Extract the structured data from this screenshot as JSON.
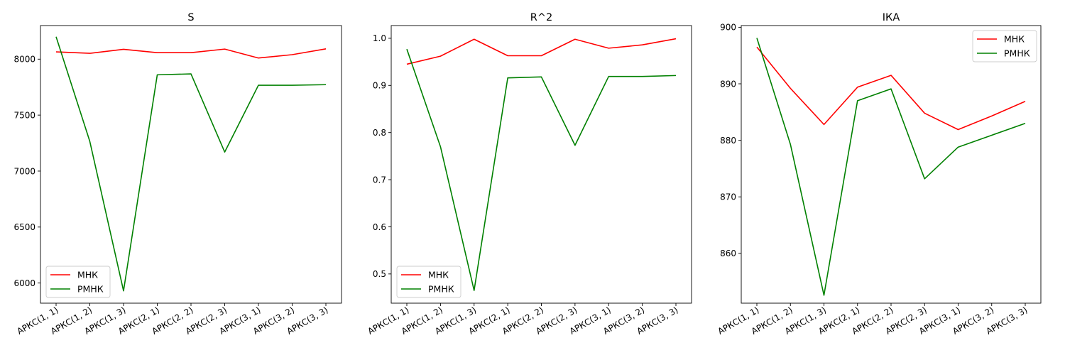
{
  "chart_data": [
    {
      "type": "line",
      "title": "S",
      "xlabel": "",
      "ylabel": "",
      "categories": [
        "АРКС(1, 1)",
        "АРКС(1, 2)",
        "АРКС(1, 3)",
        "АРКС(2, 1)",
        "АРКС(2, 2)",
        "АРКС(2, 3)",
        "АРКС(3, 1)",
        "АРКС(3, 2)",
        "АРКС(3, 3)"
      ],
      "yticks": [
        6000,
        6500,
        7000,
        7500,
        8000
      ],
      "ylim": [
        5820,
        8300
      ],
      "legend": "lower-left",
      "series": [
        {
          "name": "МНК",
          "color": "#ff0000",
          "values": [
            8065,
            8052,
            8088,
            8058,
            8058,
            8090,
            8010,
            8040,
            8092
          ]
        },
        {
          "name": "РМНК",
          "color": "#008000",
          "values": [
            8200,
            7265,
            5930,
            7860,
            7868,
            7170,
            7767,
            7767,
            7772
          ]
        }
      ]
    },
    {
      "type": "line",
      "title": "R^2",
      "xlabel": "",
      "ylabel": "",
      "categories": [
        "АРКС(1, 1)",
        "АРКС(1, 2)",
        "АРКС(1, 3)",
        "АРКС(2, 1)",
        "АРКС(2, 2)",
        "АРКС(2, 3)",
        "АРКС(3, 1)",
        "АРКС(3, 2)",
        "АРКС(3, 3)"
      ],
      "yticks": [
        0.5,
        0.6,
        0.7,
        0.8,
        0.9,
        1.0
      ],
      "yticklabels": [
        "0.5",
        "0.6",
        "0.7",
        "0.8",
        "0.9",
        "1.0"
      ],
      "ylim": [
        0.438,
        1.027
      ],
      "legend": "lower-left",
      "series": [
        {
          "name": "МНК",
          "color": "#ff0000",
          "values": [
            0.945,
            0.962,
            0.998,
            0.963,
            0.963,
            0.998,
            0.979,
            0.986,
            0.999
          ]
        },
        {
          "name": "РМНК",
          "color": "#008000",
          "values": [
            0.977,
            0.77,
            0.465,
            0.916,
            0.918,
            0.773,
            0.919,
            0.919,
            0.921
          ]
        }
      ]
    },
    {
      "type": "line",
      "title": "ІКА",
      "xlabel": "",
      "ylabel": "",
      "categories": [
        "АРКС(1, 1)",
        "АРКС(1, 2)",
        "АРКС(1, 3)",
        "АРКС(2, 1)",
        "АРКС(2, 2)",
        "АРКС(2, 3)",
        "АРКС(3, 1)",
        "АРКС(3, 2)",
        "АРКС(3, 3)"
      ],
      "yticks": [
        860,
        870,
        880,
        890,
        900
      ],
      "ylim": [
        851.2,
        900.3
      ],
      "legend": "upper-right",
      "series": [
        {
          "name": "МНК",
          "color": "#ff0000",
          "values": [
            896.5,
            889.2,
            882.8,
            889.4,
            891.5,
            884.8,
            881.9,
            884.3,
            886.9
          ]
        },
        {
          "name": "РМНК",
          "color": "#008000",
          "values": [
            898.1,
            879.3,
            852.6,
            887.0,
            889.1,
            873.2,
            878.8,
            880.9,
            883.0
          ]
        }
      ]
    }
  ]
}
